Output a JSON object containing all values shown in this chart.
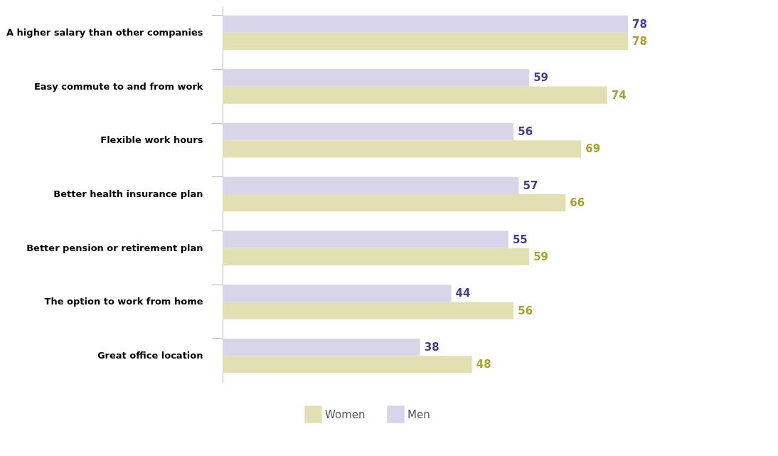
{
  "chart_data": {
    "type": "bar",
    "orientation": "horizontal",
    "data_labels": true,
    "legend": "bottom",
    "categories": [
      "A higher salary than other companies",
      "Easy commute to and from work",
      "Flexible work hours",
      "Better health insurance plan",
      "Better pension or retirement plan",
      "The option to work from home",
      "Great office location"
    ],
    "series": [
      {
        "name": "Women",
        "color": "#e2e0b3",
        "values": [
          78,
          74,
          69,
          66,
          59,
          56,
          48
        ]
      },
      {
        "name": "Men",
        "color": "#d8d4e9",
        "values": [
          78,
          59,
          56,
          57,
          55,
          44,
          38
        ]
      }
    ]
  }
}
